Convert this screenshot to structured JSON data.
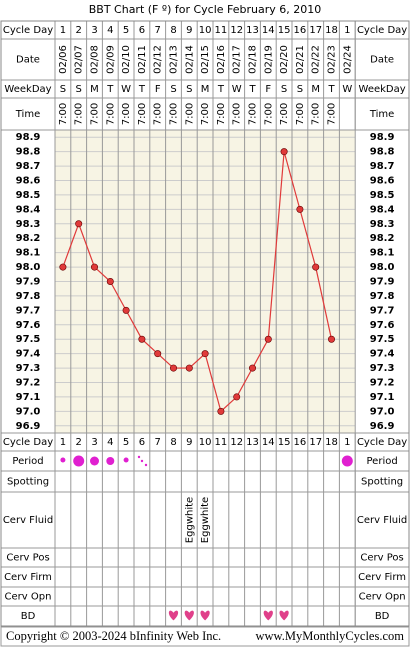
{
  "title": "BBT Chart (F º) for Cycle February 6, 2010",
  "row_labels": {
    "cycle_day": "Cycle Day",
    "date": "Date",
    "weekday": "WeekDay",
    "time": "Time",
    "period": "Period",
    "spotting": "Spotting",
    "cerv_fluid": "Cerv Fluid",
    "cerv_pos": "Cerv Pos",
    "cerv_firm": "Cerv Firm",
    "cerv_opn": "Cerv Opn",
    "bd": "BD"
  },
  "cycle_days": [
    1,
    2,
    3,
    4,
    5,
    6,
    7,
    8,
    9,
    10,
    11,
    12,
    13,
    14,
    15,
    16,
    17,
    18,
    1
  ],
  "dates": [
    "02/06",
    "02/07",
    "02/08",
    "02/09",
    "02/10",
    "02/11",
    "02/12",
    "02/13",
    "02/14",
    "02/15",
    "02/16",
    "02/17",
    "02/18",
    "02/19",
    "02/20",
    "02/21",
    "02/22",
    "02/23",
    "02/24"
  ],
  "weekdays": [
    "S",
    "S",
    "M",
    "T",
    "W",
    "T",
    "F",
    "S",
    "S",
    "M",
    "T",
    "W",
    "T",
    "F",
    "S",
    "S",
    "M",
    "T",
    "W"
  ],
  "times": [
    "7:00",
    "7:00",
    "7:00",
    "7:00",
    "7:00",
    "7:00",
    "7:00",
    "7:00",
    "7:00",
    "7:00",
    "7:00",
    "7:00",
    "7:00",
    "7:00",
    "7:00",
    "7:00",
    "7:00",
    "7:00",
    null
  ],
  "cerv_fluid": [
    null,
    null,
    null,
    null,
    null,
    null,
    null,
    null,
    "Eggwhite",
    "Eggwhite",
    null,
    null,
    null,
    null,
    null,
    null,
    null,
    null,
    null
  ],
  "chart_data": {
    "type": "line",
    "color": "#e03a3a",
    "values": [
      98.0,
      98.3,
      98.0,
      97.9,
      97.7,
      97.5,
      97.4,
      97.3,
      97.3,
      97.4,
      97.0,
      97.1,
      97.3,
      97.5,
      98.8,
      98.4,
      98.0,
      97.5,
      null
    ],
    "ylim": [
      96.85,
      98.95
    ],
    "yticks": [
      98.9,
      98.8,
      98.7,
      98.6,
      98.5,
      98.4,
      98.3,
      98.2,
      98.1,
      {
        "value": 98.0,
        "label": "98.0"
      },
      97.9,
      97.8,
      97.7,
      97.6,
      97.5,
      97.4,
      97.3,
      97.2,
      97.1,
      {
        "value": 97.0,
        "label": "97.0"
      },
      96.9
    ],
    "grid": true
  },
  "footer": {
    "copyright": "Copyright © 2003-2024 bInfinity Web Inc.",
    "site": "www.MyMonthlyCycles.com"
  }
}
